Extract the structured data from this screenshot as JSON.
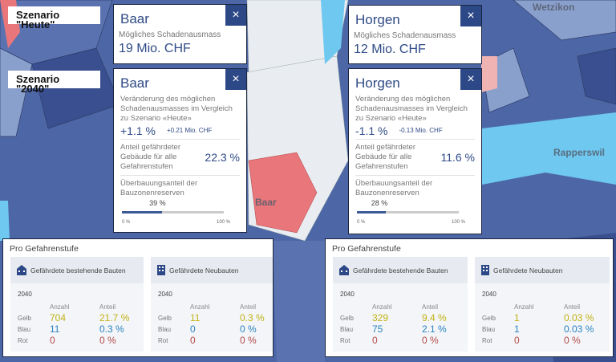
{
  "map": {
    "labels": [
      "Baar",
      "Wetzikon",
      "Rapperswil"
    ],
    "colors": {
      "dark": "#3a4f90",
      "mid": "#4d67a6",
      "light": "#8aa0cc",
      "pale": "#e9ecf1",
      "lake": "#6fc8ef",
      "red": "#e8767a",
      "pink": "#f0b3b3"
    }
  },
  "scenarios": {
    "today": "Szenario \"Heute\"",
    "future": "Szenario \"2040\""
  },
  "close_icon": "×",
  "baar": {
    "today": {
      "title": "Baar",
      "label": "Mögliches Schadenausmass",
      "value": "19 Mio. CHF"
    },
    "future": {
      "title": "Baar",
      "change_label": "Veränderung des möglichen Schadenausmasses im Vergleich zu Szenario «Heute»",
      "change_pct": "+1.1 %",
      "change_abs": "+0.21 Mio. CHF",
      "share_label": "Anteil gefährdeter Gebäude für alle Gefahrenstufen",
      "share_value": "22.3 %",
      "reserve_label": "Überbauungsanteil der Bauzonenreserven",
      "reserve_value": "39 %",
      "reserve_fraction": 0.39,
      "min": "0 %",
      "max": "100 %"
    },
    "levels": {
      "title": "Pro Gefahrenstufe",
      "existing": {
        "title": "Gefährdete bestehende Bauten",
        "year": "2040",
        "col_count": "Anzahl",
        "col_share": "Anteil",
        "rows": [
          {
            "label": "Gelb",
            "count": "704",
            "share": "21.7 %"
          },
          {
            "label": "Blau",
            "count": "11",
            "share": "0.3 %"
          },
          {
            "label": "Rot",
            "count": "0",
            "share": "0 %"
          }
        ]
      },
      "new": {
        "title": "Gefährdete Neubauten",
        "year": "2040",
        "col_count": "Anzahl",
        "col_share": "Anteil",
        "rows": [
          {
            "label": "Gelb",
            "count": "11",
            "share": "0.3 %"
          },
          {
            "label": "Blau",
            "count": "0",
            "share": "0 %"
          },
          {
            "label": "Rot",
            "count": "0",
            "share": "0 %"
          }
        ]
      }
    }
  },
  "horgen": {
    "today": {
      "title": "Horgen",
      "label": "Mögliches Schadenausmass",
      "value": "12 Mio. CHF"
    },
    "future": {
      "title": "Horgen",
      "change_label": "Veränderung des möglichen Schadenausmasses im Vergleich zu Szenario «Heute»",
      "change_pct": "-1.1 %",
      "change_abs": "-0.13 Mio. CHF",
      "share_label": "Anteil gefährdeter Gebäude für alle Gefahrenstufen",
      "share_value": "11.6 %",
      "reserve_label": "Überbauungsanteil der Bauzonenreserven",
      "reserve_value": "28 %",
      "reserve_fraction": 0.28,
      "min": "0 %",
      "max": "100 %"
    },
    "levels": {
      "title": "Pro Gefahrenstufe",
      "existing": {
        "title": "Gefährdete bestehende Bauten",
        "year": "2040",
        "col_count": "Anzahl",
        "col_share": "Anteil",
        "rows": [
          {
            "label": "Gelb",
            "count": "329",
            "share": "9.4 %"
          },
          {
            "label": "Blau",
            "count": "75",
            "share": "2.1 %"
          },
          {
            "label": "Rot",
            "count": "0",
            "share": "0 %"
          }
        ]
      },
      "new": {
        "title": "Gefährdete Neubauten",
        "year": "2040",
        "col_count": "Anzahl",
        "col_share": "Anteil",
        "rows": [
          {
            "label": "Gelb",
            "count": "1",
            "share": "0.03 %"
          },
          {
            "label": "Blau",
            "count": "1",
            "share": "0.03 %"
          },
          {
            "label": "Rot",
            "count": "0",
            "share": "0 %"
          }
        ]
      }
    }
  }
}
